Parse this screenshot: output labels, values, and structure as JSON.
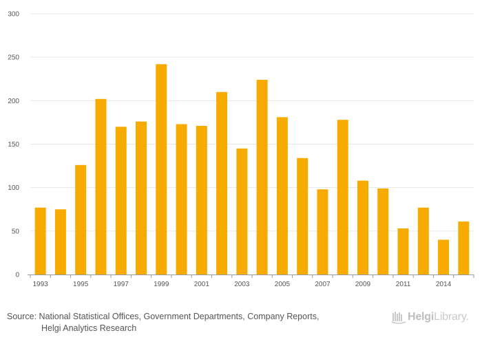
{
  "chart_data": {
    "type": "bar",
    "categories": [
      "1993",
      "1994",
      "1995",
      "1996",
      "1997",
      "1998",
      "1999",
      "2000",
      "2001",
      "2002",
      "2003",
      "2004",
      "2005",
      "2006",
      "2007",
      "2008",
      "2009",
      "2010",
      "2011",
      "2012",
      "2014",
      "2015"
    ],
    "tick_labels": [
      "1993",
      "",
      "1995",
      "",
      "1997",
      "",
      "1999",
      "",
      "2001",
      "",
      "2003",
      "",
      "2005",
      "",
      "2007",
      "",
      "2009",
      "",
      "2011",
      "",
      "2014",
      ""
    ],
    "values": [
      77,
      75,
      126,
      202,
      170,
      176,
      242,
      173,
      171,
      210,
      145,
      224,
      181,
      134,
      98,
      178,
      108,
      99,
      53,
      77,
      40,
      61
    ],
    "ylim": [
      0,
      300
    ],
    "yticks": [
      0,
      50,
      100,
      150,
      200,
      250,
      300
    ],
    "title": "",
    "xlabel": "",
    "ylabel": "",
    "bar_color": "#f7ab00",
    "grid": true
  },
  "footer": {
    "source_line1": "Source: National Statistical Offices, Government Departments, Company Reports,",
    "source_line2": "Helgi Analytics Research"
  },
  "logo": {
    "name_part1": "Helgi",
    "name_part2": "Library.",
    "icon": "helgi-library-logo-icon"
  }
}
